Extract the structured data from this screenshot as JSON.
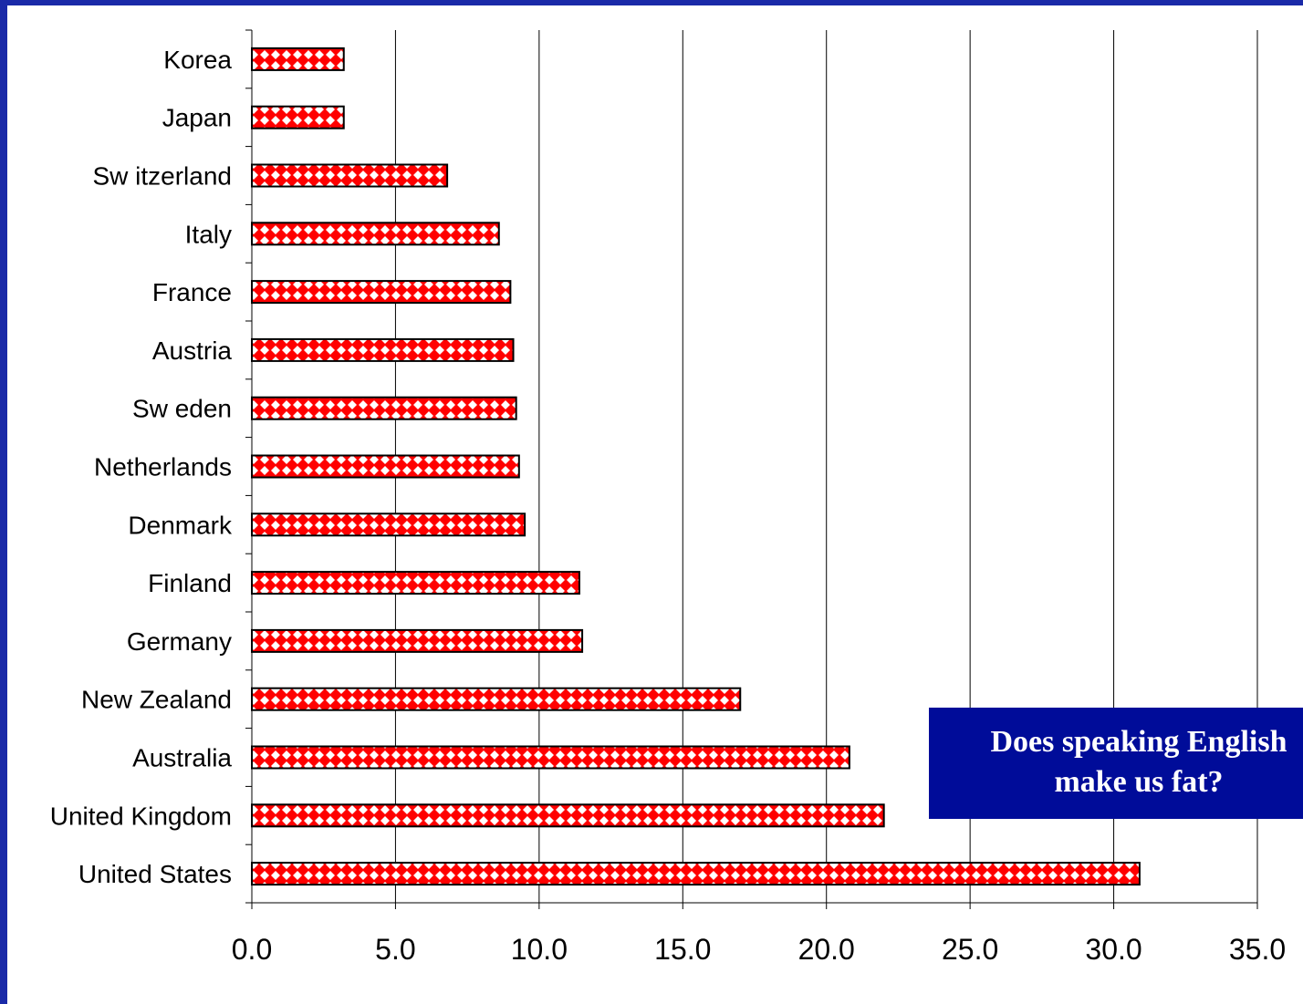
{
  "chart_data": {
    "type": "bar",
    "orientation": "horizontal",
    "categories": [
      "Korea",
      "Japan",
      "Sw itzerland",
      "Italy",
      "France",
      "Austria",
      "Sw eden",
      "Netherlands",
      "Denmark",
      "Finland",
      "Germany",
      "New  Zealand",
      "Australia",
      "United Kingdom",
      "United States"
    ],
    "values": [
      3.2,
      3.2,
      6.8,
      8.6,
      9.0,
      9.1,
      9.2,
      9.3,
      9.5,
      11.4,
      11.5,
      17.0,
      20.8,
      22.0,
      30.9
    ],
    "x_ticks": [
      "0.0",
      "5.0",
      "10.0",
      "15.0",
      "20.0",
      "25.0",
      "30.0",
      "35.0"
    ],
    "xlim": [
      0,
      35
    ],
    "grid": "vertical",
    "title": "",
    "xlabel": "",
    "ylabel": "",
    "bar_pattern": "red-white-diamond",
    "colors": {
      "bar": "#ff0000",
      "pattern_fill": "#ffffff",
      "background": "#1a2aa8",
      "callout_bg": "#000c99",
      "callout_text": "#ffffff"
    }
  },
  "annotation": {
    "text": "Does speaking English\nmake us fat?"
  }
}
